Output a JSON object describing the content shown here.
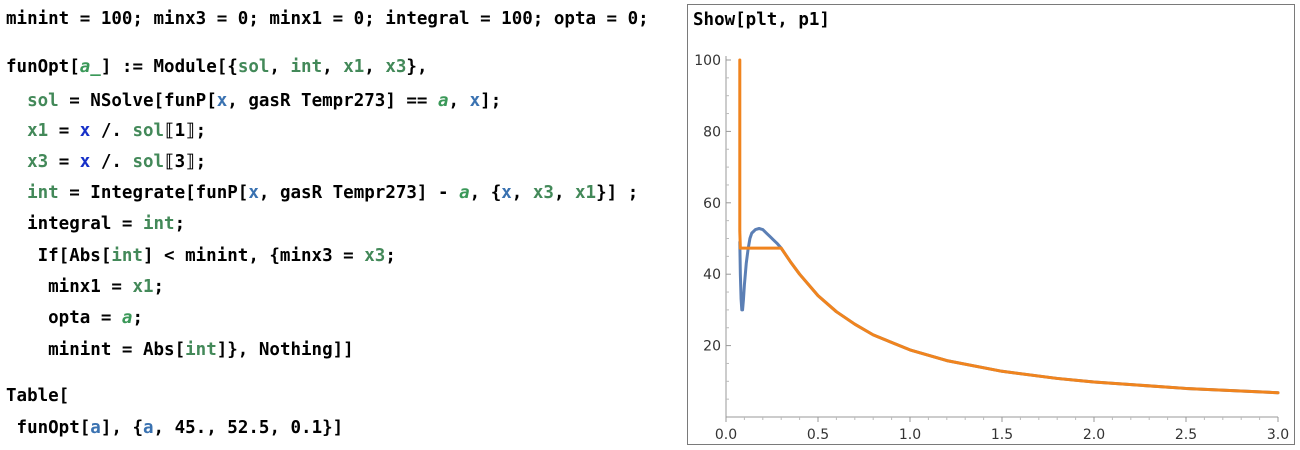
{
  "code": {
    "lines": [
      [
        [
          "plain",
          "minint = 100; minx3 = 0; minx1 = 0; integral = 100; opta = 0;"
        ]
      ],
      [
        [
          "plain",
          "funOpt["
        ],
        [
          "param",
          "a_"
        ],
        [
          "plain",
          "] := Module[{"
        ],
        [
          "local",
          "sol"
        ],
        [
          "plain",
          ", "
        ],
        [
          "local",
          "int"
        ],
        [
          "plain",
          ", "
        ],
        [
          "local",
          "x1"
        ],
        [
          "plain",
          ", "
        ],
        [
          "local",
          "x3"
        ],
        [
          "plain",
          "},"
        ]
      ],
      [
        [
          "plain",
          "  "
        ],
        [
          "local",
          "sol"
        ],
        [
          "plain",
          " = NSolve[funP["
        ],
        [
          "global",
          "x"
        ],
        [
          "plain",
          ", gasR Tempr273] == "
        ],
        [
          "param",
          "a"
        ],
        [
          "plain",
          ", "
        ],
        [
          "global",
          "x"
        ],
        [
          "plain",
          "];"
        ]
      ],
      [
        [
          "plain",
          "  "
        ],
        [
          "local",
          "x1"
        ],
        [
          "plain",
          " = "
        ],
        [
          "x",
          "x"
        ],
        [
          "plain",
          " /. "
        ],
        [
          "local",
          "sol"
        ],
        [
          "plain",
          "⟦1⟧;"
        ]
      ],
      [
        [
          "plain",
          "  "
        ],
        [
          "local",
          "x3"
        ],
        [
          "plain",
          " = "
        ],
        [
          "x",
          "x"
        ],
        [
          "plain",
          " /. "
        ],
        [
          "local",
          "sol"
        ],
        [
          "plain",
          "⟦3⟧;"
        ]
      ],
      [
        [
          "plain",
          "  "
        ],
        [
          "local",
          "int"
        ],
        [
          "plain",
          " = Integrate[funP["
        ],
        [
          "global",
          "x"
        ],
        [
          "plain",
          ", gasR Tempr273] - "
        ],
        [
          "param",
          "a"
        ],
        [
          "plain",
          ", {"
        ],
        [
          "global",
          "x"
        ],
        [
          "plain",
          ", "
        ],
        [
          "local",
          "x3"
        ],
        [
          "plain",
          ", "
        ],
        [
          "local",
          "x1"
        ],
        [
          "plain",
          "}] ;"
        ]
      ],
      [
        [
          "plain",
          "  integral = "
        ],
        [
          "local",
          "int"
        ],
        [
          "plain",
          ";"
        ]
      ],
      [
        [
          "plain",
          "   If[Abs["
        ],
        [
          "local",
          "int"
        ],
        [
          "plain",
          "] < minint, {minx3 = "
        ],
        [
          "local",
          "x3"
        ],
        [
          "plain",
          ";"
        ]
      ],
      [
        [
          "plain",
          "    minx1 = "
        ],
        [
          "local",
          "x1"
        ],
        [
          "plain",
          ";"
        ]
      ],
      [
        [
          "plain",
          "    opta = "
        ],
        [
          "param",
          "a"
        ],
        [
          "plain",
          ";"
        ]
      ],
      [
        [
          "plain",
          "    minint = Abs["
        ],
        [
          "local",
          "int"
        ],
        [
          "plain",
          "]}, Nothing]]"
        ]
      ],
      [
        [
          "plain",
          "Table["
        ]
      ],
      [
        [
          "plain",
          " funOpt["
        ],
        [
          "global",
          "a"
        ],
        [
          "plain",
          "], {"
        ],
        [
          "global",
          "a"
        ],
        [
          "plain",
          ", 45., 52.5, 0.1}]"
        ]
      ]
    ]
  },
  "plot_cell": {
    "title": "Show[plt, p1]"
  },
  "chart_data": {
    "type": "line",
    "title": "",
    "xlabel": "",
    "ylabel": "",
    "xlim": [
      0,
      3.0
    ],
    "ylim": [
      0,
      100
    ],
    "x_ticks": [
      "0.0",
      "0.5",
      "1.0",
      "1.5",
      "2.0",
      "2.5",
      "3.0"
    ],
    "y_ticks": [
      "20",
      "40",
      "60",
      "80",
      "100"
    ],
    "grid": false,
    "series": [
      {
        "color": "#5b7fb5",
        "x": [
          0.075,
          0.078,
          0.082,
          0.086,
          0.09,
          0.095,
          0.1,
          0.11,
          0.12,
          0.13,
          0.14,
          0.15,
          0.16,
          0.18,
          0.2,
          0.22,
          0.24,
          0.26,
          0.28,
          0.3,
          0.35,
          0.4,
          0.5,
          0.6,
          0.7,
          0.8,
          1.0,
          1.2,
          1.5,
          1.8,
          2.0,
          2.5,
          3.0
        ],
        "y": [
          49,
          40,
          33,
          30,
          30,
          33,
          37,
          43,
          47,
          50,
          51.5,
          52,
          52.5,
          52.8,
          52.5,
          51.5,
          50.5,
          49.5,
          48.5,
          47.3,
          43.5,
          40,
          34,
          29.5,
          26,
          23,
          18.8,
          15.8,
          12.8,
          10.8,
          9.8,
          8.0,
          6.8
        ]
      },
      {
        "color": "#f0841e",
        "x": [
          0.075,
          0.075,
          0.078,
          0.08,
          0.1,
          0.2,
          0.28,
          0.3,
          0.35,
          0.4,
          0.5,
          0.6,
          0.7,
          0.8,
          1.0,
          1.2,
          1.5,
          1.8,
          2.0,
          2.5,
          3.0
        ],
        "y": [
          100,
          52,
          47.3,
          47.3,
          47.3,
          47.3,
          47.3,
          47.3,
          43.5,
          40,
          34,
          29.5,
          26,
          23,
          18.8,
          15.8,
          12.8,
          10.8,
          9.8,
          8.0,
          6.8
        ]
      }
    ]
  }
}
